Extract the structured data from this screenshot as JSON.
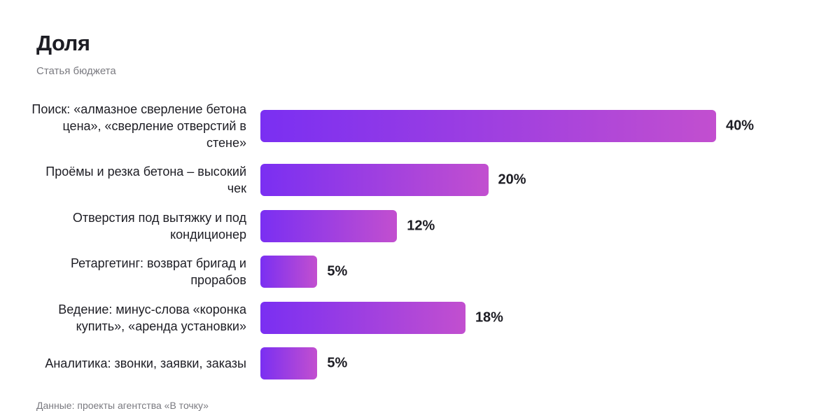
{
  "chart_data": {
    "type": "bar",
    "orientation": "horizontal",
    "title": "Доля",
    "subtitle": "Статья бюджета",
    "categories": [
      "Поиск: «алмазное сверление бетона цена», «сверление отверстий в стене»",
      "Проёмы и резка бетона – высокий чек",
      "Отверстия под вытяжку и под кондиционер",
      "Ретаргетинг: возврат бригад и прорабов",
      "Ведение: минус-слова «коронка купить», «аренда установки»",
      "Аналитика: звонки, заявки, заказы"
    ],
    "values": [
      40,
      20,
      12,
      5,
      18,
      5
    ],
    "value_labels": [
      "40%",
      "20%",
      "12%",
      "5%",
      "18%",
      "5%"
    ],
    "source": "Данные: проекты агентства «В точку»"
  }
}
